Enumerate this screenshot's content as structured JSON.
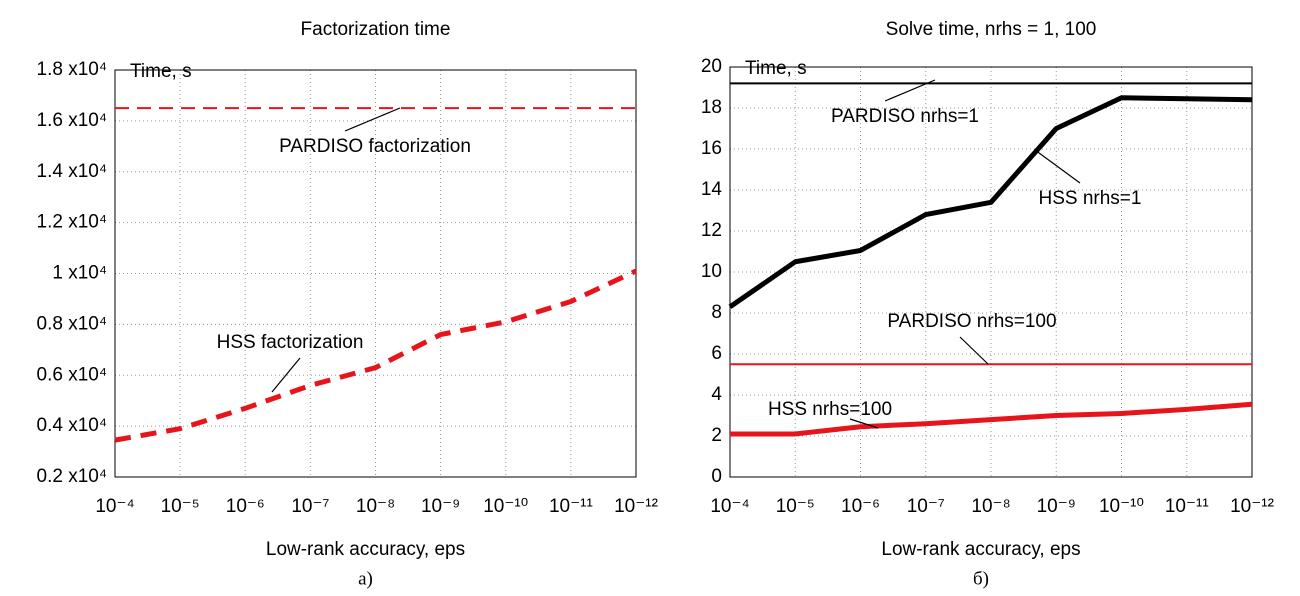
{
  "chart_data": [
    {
      "type": "line",
      "title": "Factorization time",
      "y_label": "Time, s",
      "x_label": "Low-rank accuracy, eps",
      "caption": "a)",
      "x_scale": "log",
      "grid": true,
      "style": "dashed",
      "x": [
        0.0001,
        1e-05,
        1e-06,
        1e-07,
        1e-08,
        1e-09,
        1e-10,
        1e-11,
        1e-12
      ],
      "xlim": [
        0.0001,
        1e-12
      ],
      "xticks": [
        {
          "value": 0.0001,
          "label": "10⁻⁴"
        },
        {
          "value": 1e-05,
          "label": "10⁻⁵"
        },
        {
          "value": 1e-06,
          "label": "10⁻⁶"
        },
        {
          "value": 1e-07,
          "label": "10⁻⁷"
        },
        {
          "value": 1e-08,
          "label": "10⁻⁸"
        },
        {
          "value": 1e-09,
          "label": "10⁻⁹"
        },
        {
          "value": 1e-10,
          "label": "10⁻¹⁰"
        },
        {
          "value": 1e-11,
          "label": "10⁻¹¹"
        },
        {
          "value": 1e-12,
          "label": "10⁻¹²"
        }
      ],
      "ylim": [
        2000,
        18000
      ],
      "yticks": [
        {
          "value": 2000,
          "label": "0.2 x10⁴"
        },
        {
          "value": 4000,
          "label": "0.4 x10⁴"
        },
        {
          "value": 6000,
          "label": "0.6 x10⁴"
        },
        {
          "value": 8000,
          "label": "0.8 x10⁴"
        },
        {
          "value": 10000,
          "label": "1 x10⁴"
        },
        {
          "value": 12000,
          "label": "1.2 x10⁴"
        },
        {
          "value": 14000,
          "label": "1.4 x10⁴"
        },
        {
          "value": 16000,
          "label": "1.6 x10⁴"
        },
        {
          "value": 18000,
          "label": "1.8 x10⁴"
        }
      ],
      "series": [
        {
          "name": "PARDISO factorization",
          "color": "#e8141b",
          "weight": "light",
          "values": [
            16500,
            16500,
            16500,
            16500,
            16500,
            16500,
            16500,
            16500,
            16500
          ]
        },
        {
          "name": "HSS factorization",
          "color": "#e8141b",
          "weight": "heavy",
          "values": [
            3450,
            3900,
            4700,
            5600,
            6300,
            7600,
            8100,
            8900,
            10100
          ]
        }
      ]
    },
    {
      "type": "line",
      "title": "Solve time, nrhs = 1, 100",
      "y_label": "Time, s",
      "x_label": "Low-rank accuracy, eps",
      "caption": "б)",
      "x_scale": "log",
      "grid": true,
      "style": "solid",
      "x": [
        0.0001,
        1e-05,
        1e-06,
        1e-07,
        1e-08,
        1e-09,
        1e-10,
        1e-11,
        1e-12
      ],
      "xlim": [
        0.0001,
        1e-12
      ],
      "xticks": [
        {
          "value": 0.0001,
          "label": "10⁻⁴"
        },
        {
          "value": 1e-05,
          "label": "10⁻⁵"
        },
        {
          "value": 1e-06,
          "label": "10⁻⁶"
        },
        {
          "value": 1e-07,
          "label": "10⁻⁷"
        },
        {
          "value": 1e-08,
          "label": "10⁻⁸"
        },
        {
          "value": 1e-09,
          "label": "10⁻⁹"
        },
        {
          "value": 1e-10,
          "label": "10⁻¹⁰"
        },
        {
          "value": 1e-11,
          "label": "10⁻¹¹"
        },
        {
          "value": 1e-12,
          "label": "10⁻¹²"
        }
      ],
      "ylim": [
        0,
        20
      ],
      "yticks": [
        0,
        2,
        4,
        6,
        8,
        10,
        12,
        14,
        16,
        18,
        20
      ],
      "series": [
        {
          "name": "PARDISO nrhs=1",
          "color": "#000000",
          "weight": "light",
          "values": [
            19.2,
            19.2,
            19.2,
            19.2,
            19.2,
            19.2,
            19.2,
            19.2,
            19.2
          ]
        },
        {
          "name": "HSS nrhs=1",
          "color": "#000000",
          "weight": "heavy",
          "values": [
            8.3,
            10.5,
            11.05,
            12.8,
            13.4,
            17,
            18.5,
            18.45,
            18.4
          ]
        },
        {
          "name": "PARDISO nrhs=100",
          "color": "#e8141b",
          "weight": "light",
          "values": [
            5.5,
            5.5,
            5.5,
            5.5,
            5.5,
            5.5,
            5.5,
            5.5,
            5.5
          ]
        },
        {
          "name": "HSS nrhs=100",
          "color": "#e8141b",
          "weight": "heavy",
          "values": [
            2.1,
            2.1,
            2.45,
            2.6,
            2.8,
            3.0,
            3.1,
            3.3,
            3.55
          ]
        }
      ]
    }
  ]
}
